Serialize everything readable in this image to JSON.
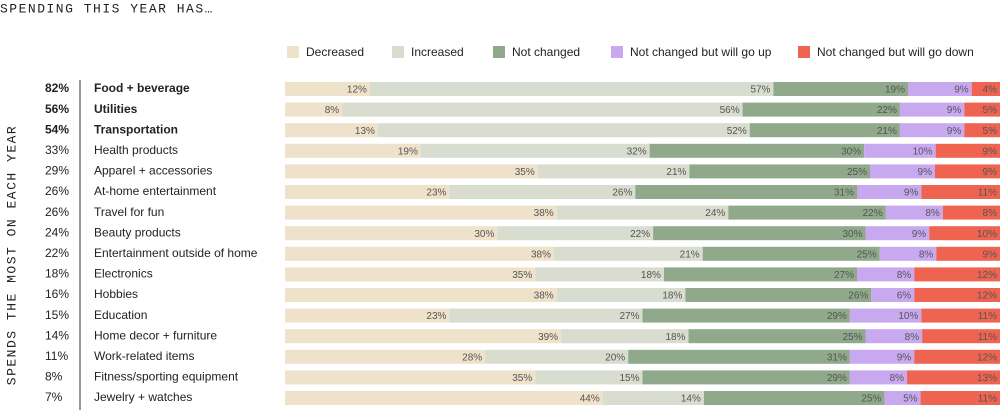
{
  "chart_data": {
    "type": "stacked-barh",
    "title": "SPENDING THIS YEAR HAS…",
    "y_label": "SPENDS THE MOST ON EACH YEAR",
    "categories": [
      "Food + beverage",
      "Utilities",
      "Transportation",
      "Health products",
      "Apparel + accessories",
      "At-home entertainment",
      "Travel for fun",
      "Beauty products",
      "Entertainment outside of home",
      "Electronics",
      "Hobbies",
      "Education",
      "Home decor + furniture",
      "Work-related items",
      "Fitness/sporting equipment",
      "Jewelry + watches"
    ],
    "shares": [
      "82%",
      "56%",
      "54%",
      "33%",
      "29%",
      "26%",
      "26%",
      "24%",
      "22%",
      "18%",
      "16%",
      "15%",
      "14%",
      "11%",
      "8%",
      "7%"
    ],
    "bold": [
      true,
      true,
      true,
      false,
      false,
      false,
      false,
      false,
      false,
      false,
      false,
      false,
      false,
      false,
      false,
      false
    ],
    "series": [
      {
        "name": "Decreased",
        "color": "#efe2ca",
        "values": [
          12,
          8,
          13,
          19,
          35,
          23,
          38,
          30,
          38,
          35,
          38,
          23,
          39,
          28,
          35,
          44
        ],
        "value_labels": [
          "12%",
          "8%",
          "13%",
          "19%",
          "35%",
          "23%",
          "38%",
          "30%",
          "38%",
          "35%",
          "38%",
          "23%",
          "39%",
          "28%",
          "35%",
          "44%"
        ]
      },
      {
        "name": "Increased",
        "color": "#d8ddcf",
        "values": [
          57,
          56,
          52,
          32,
          21,
          26,
          24,
          22,
          21,
          18,
          18,
          27,
          18,
          20,
          15,
          14
        ],
        "value_labels": [
          "57%",
          "56%",
          "52%",
          "32%",
          "21%",
          "26%",
          "24%",
          "22%",
          "21%",
          "18%",
          "18%",
          "27%",
          "18%",
          "20%",
          "15%",
          "14%"
        ]
      },
      {
        "name": "Not changed",
        "color": "#8fa98a",
        "values": [
          19,
          22,
          21,
          30,
          25,
          31,
          22,
          30,
          25,
          27,
          26,
          29,
          25,
          31,
          29,
          25
        ],
        "value_labels": [
          "19%",
          "22%",
          "21%",
          "30%",
          "25%",
          "31%",
          "22%",
          "30%",
          "25%",
          "27%",
          "26%",
          "29%",
          "25%",
          "31%",
          "29%",
          "25%"
        ]
      },
      {
        "name": "Not changed but will go up",
        "color": "#c8a9f0",
        "values": [
          9,
          9,
          9,
          10,
          9,
          9,
          8,
          9,
          8,
          8,
          6,
          10,
          8,
          9,
          8,
          5
        ],
        "value_labels": [
          "9%",
          "9%",
          "9%",
          "10%",
          "9%",
          "9%",
          "8%",
          "9%",
          "8%",
          "8%",
          "6%",
          "10%",
          "8%",
          "9%",
          "8%",
          "5%"
        ]
      },
      {
        "name": "Not changed but will go down",
        "color": "#ef6451",
        "values": [
          4,
          5,
          5,
          9,
          9,
          11,
          8,
          10,
          9,
          12,
          12,
          11,
          11,
          12,
          13,
          11
        ],
        "value_labels": [
          "4%",
          "5%",
          "5%",
          "9%",
          "9%",
          "11%",
          "8%",
          "10%",
          "9%",
          "12%",
          "12%",
          "11%",
          "11%",
          "12%",
          "13%",
          "11%"
        ]
      }
    ]
  }
}
